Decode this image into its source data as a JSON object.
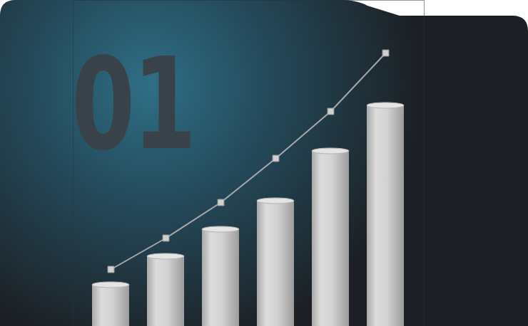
{
  "chart_data": {
    "type": "bar",
    "title": "01",
    "categories": [
      null,
      null,
      null,
      null,
      null,
      null
    ],
    "series": [
      {
        "type": "bar",
        "color": "#c9c9c9",
        "values": [
          58,
          98,
          136,
          176,
          246,
          310
        ]
      },
      {
        "type": "line",
        "color": "#a9a9a9",
        "marker": "square",
        "values": [
          80,
          124,
          174,
          236,
          302,
          384
        ]
      }
    ],
    "ylim": [
      0,
      458
    ],
    "grid": false,
    "tick_labels": false
  }
}
